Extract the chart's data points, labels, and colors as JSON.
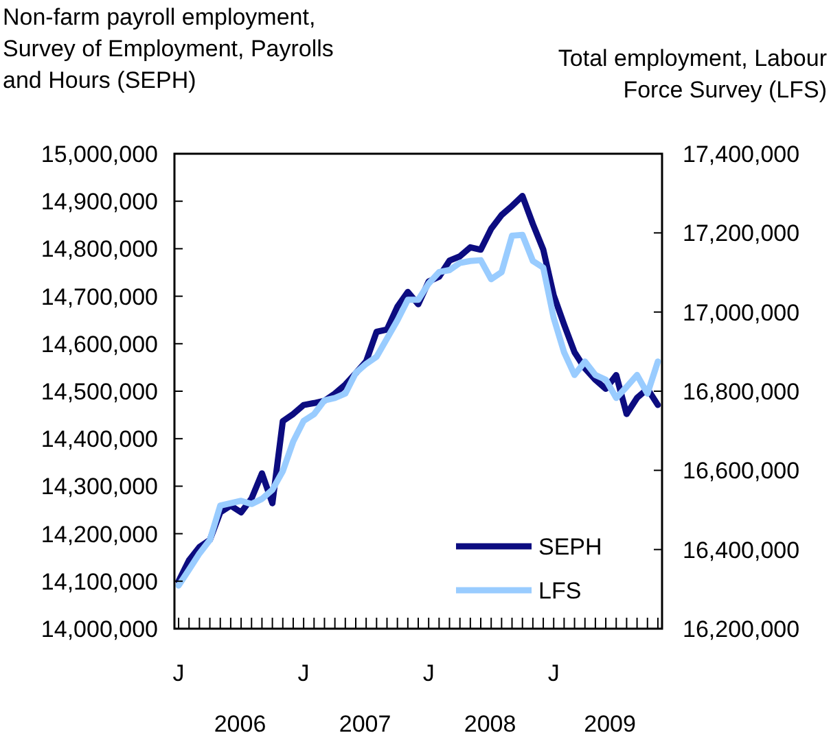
{
  "chart_data": {
    "type": "line",
    "ylabel": "Non-farm payroll employment, Survey of Employment, Payrolls and Hours (SEPH)",
    "y2label": "Total employment, Labour Force Survey (LFS)",
    "categories": [
      "J",
      null,
      null,
      null,
      null,
      null,
      null,
      null,
      null,
      null,
      null,
      null,
      "J",
      null,
      null,
      null,
      null,
      null,
      null,
      null,
      null,
      null,
      null,
      null,
      "J",
      null,
      null,
      null,
      null,
      null,
      null,
      null,
      null,
      null,
      null,
      null,
      "J",
      null,
      null,
      null,
      null,
      null,
      null,
      null,
      null,
      null,
      null
    ],
    "series": [
      {
        "name": "SEPH",
        "color": "#0c0c80",
        "values": [
          14100000,
          14144000,
          14172000,
          14187000,
          14245000,
          14259000,
          14245000,
          14274000,
          14327000,
          14264000,
          14437000,
          14452000,
          14471000,
          14475000,
          14480000,
          14495000,
          14514000,
          14538000,
          14563000,
          14625000,
          14630000,
          14678000,
          14709000,
          14683000,
          14731000,
          14741000,
          14775000,
          14784000,
          14803000,
          14798000,
          14842000,
          14871000,
          14890000,
          14911000,
          14852000,
          14798000,
          14702000,
          14640000,
          14582000,
          14548000,
          14524000,
          14505000,
          14534000,
          14452000,
          14486000,
          14505000,
          14471000
        ]
      },
      {
        "name": "LFS",
        "color": "#99ccff",
        "axis": "y2",
        "values": [
          16309000,
          16349000,
          16390000,
          16424000,
          16511000,
          16517000,
          16523000,
          16515000,
          16528000,
          16551000,
          16598000,
          16673000,
          16725000,
          16742000,
          16777000,
          16783000,
          16794000,
          16846000,
          16869000,
          16887000,
          16933000,
          16979000,
          17031000,
          17031000,
          17072000,
          17101000,
          17106000,
          17124000,
          17129000,
          17131000,
          17083000,
          17101000,
          17193000,
          17195000,
          17129000,
          17112000,
          16985000,
          16898000,
          16841000,
          16875000,
          16841000,
          16829000,
          16783000,
          16811000,
          16841000,
          16794000,
          16875000
        ]
      }
    ],
    "ylim": [
      14000000,
      15000000
    ],
    "yticks": [
      {
        "value": 14000000,
        "label": "14,000,000"
      },
      {
        "value": 14100000,
        "label": "14,100,000"
      },
      {
        "value": 14200000,
        "label": "14,200,000"
      },
      {
        "value": 14300000,
        "label": "14,300,000"
      },
      {
        "value": 14400000,
        "label": "14,400,000"
      },
      {
        "value": 14500000,
        "label": "14,500,000"
      },
      {
        "value": 14600000,
        "label": "14,600,000"
      },
      {
        "value": 14700000,
        "label": "14,700,000"
      },
      {
        "value": 14800000,
        "label": "14,800,000"
      },
      {
        "value": 14900000,
        "label": "14,900,000"
      },
      {
        "value": 15000000,
        "label": "15,000,000"
      }
    ],
    "y2lim": [
      16200000,
      17400000
    ],
    "y2ticks": [
      {
        "value": 16200000,
        "label": "16,200,000"
      },
      {
        "value": 16400000,
        "label": "16,400,000"
      },
      {
        "value": 16600000,
        "label": "16,600,000"
      },
      {
        "value": 16800000,
        "label": "16,800,000"
      },
      {
        "value": 17000000,
        "label": "17,000,000"
      },
      {
        "value": 17200000,
        "label": "17,200,000"
      },
      {
        "value": 17400000,
        "label": "17,400,000"
      }
    ],
    "annotations": [
      "2006",
      "2007",
      "2008",
      "2009"
    ],
    "grid": false,
    "legend": "bottom right",
    "marker": "none",
    "line_style": "solid"
  }
}
